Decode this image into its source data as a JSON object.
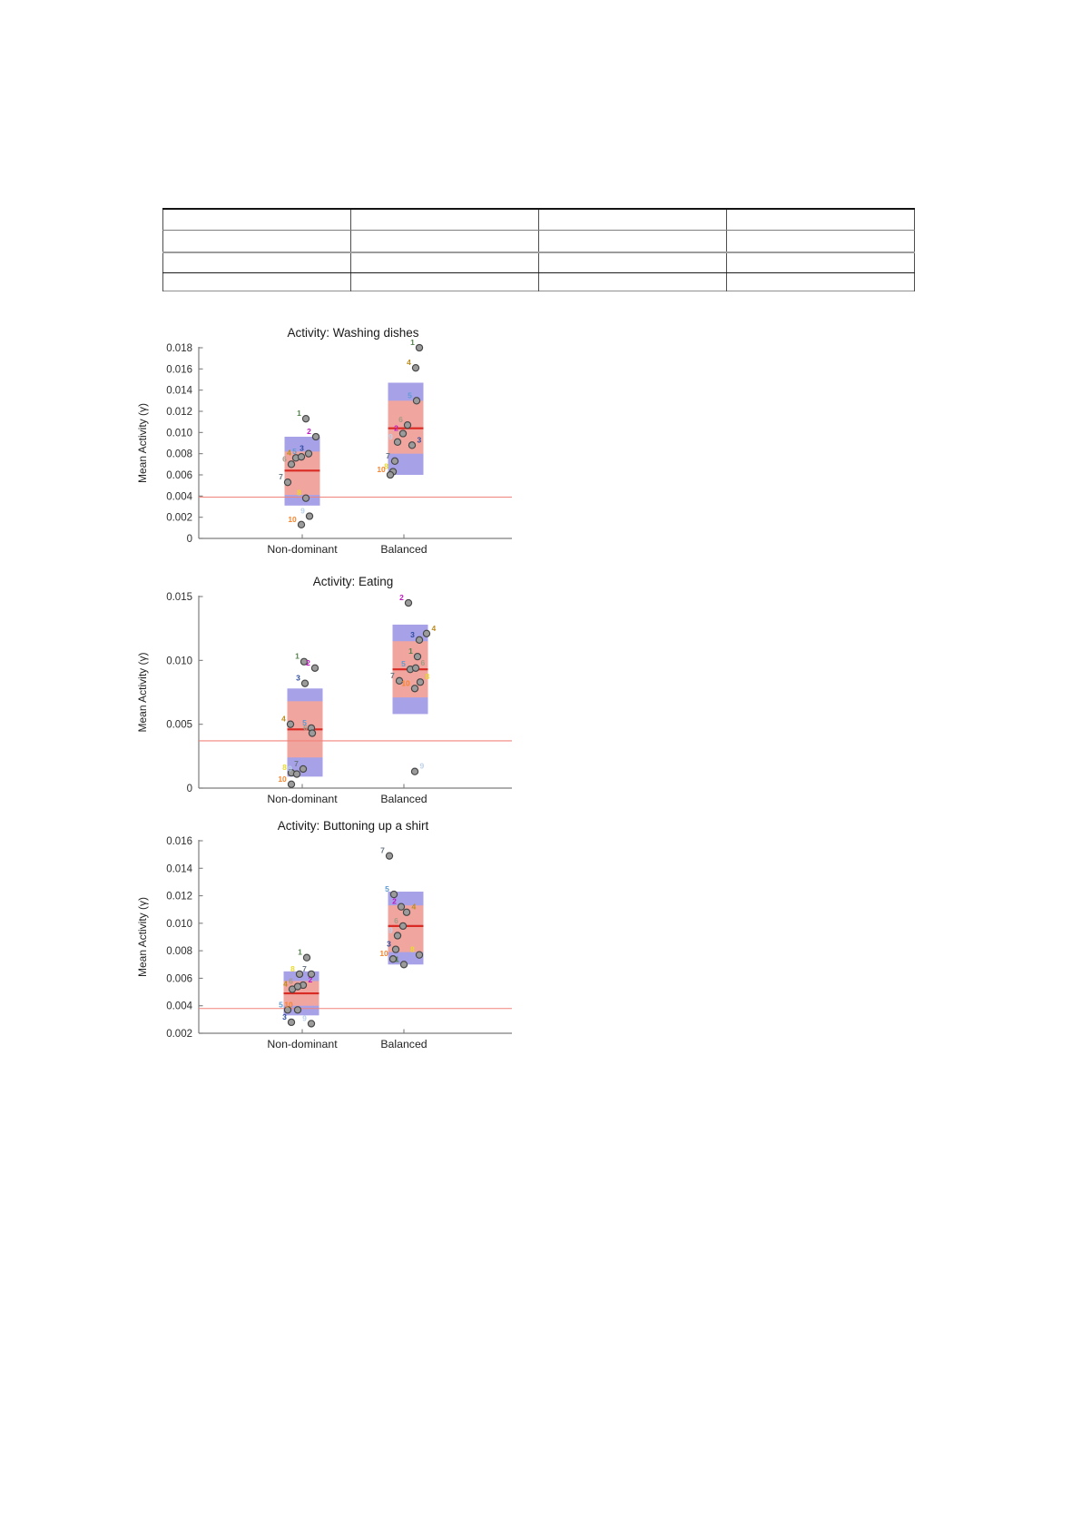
{
  "table": {
    "rows": 4,
    "cols": 4,
    "cells": [
      [
        "",
        "",
        "",
        ""
      ],
      [
        "",
        "",
        "",
        ""
      ],
      [
        "",
        "",
        "",
        ""
      ],
      [
        "",
        "",
        "",
        ""
      ]
    ]
  },
  "subject_colors": {
    "1": "#53824a",
    "2": "#c116c1",
    "3": "#2d4a9e",
    "4": "#bd8d22",
    "5": "#5f9bd3",
    "6": "#a39a86",
    "7": "#697683",
    "8": "#e9dc2a",
    "9": "#bcd2ec",
    "10": "#f5852f"
  },
  "colors": {
    "outer_box": "#a7a1e8",
    "inner_box": "#f0a59f",
    "median_line": "#d92b23",
    "reference_line": "#f0837b",
    "axis": "#7d7d7d",
    "marker_fill": "#9b9b9b",
    "marker_stroke": "#454545"
  },
  "chart_data": [
    {
      "type": "scatter",
      "title": "Activity:  Washing dishes",
      "ylabel": "Mean Activity (γ)",
      "categories": [
        "Non-dominant",
        "Balanced"
      ],
      "ylim": [
        0,
        0.018
      ],
      "yticks": [
        0,
        0.002,
        0.004,
        0.006,
        0.008,
        0.01,
        0.012,
        0.014,
        0.016,
        0.018
      ],
      "reference_line": 0.0039,
      "groups": [
        {
          "category": "Non-dominant",
          "box_dx": 0,
          "outer_range": [
            0.0031,
            0.0096
          ],
          "inner_range": [
            0.0041,
            0.0082
          ],
          "median": 0.0064,
          "points": [
            {
              "s": "1",
              "v": 0.0113,
              "dx": 4,
              "side": "left"
            },
            {
              "s": "2",
              "v": 0.0096,
              "dx": 15,
              "side": "left"
            },
            {
              "s": "3",
              "v": 0.008,
              "dx": 7,
              "side": "left"
            },
            {
              "s": "4",
              "v": 0.0076,
              "dx": -7,
              "side": "left"
            },
            {
              "s": "5",
              "v": 0.0077,
              "dx": -1,
              "side": "left"
            },
            {
              "s": "6",
              "v": 0.007,
              "dx": -12,
              "side": "left"
            },
            {
              "s": "7",
              "v": 0.0053,
              "dx": -16,
              "side": "left"
            },
            {
              "s": "8",
              "v": 0.0038,
              "dx": 4,
              "side": "left"
            },
            {
              "s": "9",
              "v": 0.0021,
              "dx": 8,
              "side": "left"
            },
            {
              "s": "10",
              "v": 0.0013,
              "dx": -1,
              "side": "left"
            }
          ]
        },
        {
          "category": "Balanced",
          "box_dx": 2,
          "outer_range": [
            0.006,
            0.0147
          ],
          "inner_range": [
            0.008,
            0.013
          ],
          "median": 0.0104,
          "points": [
            {
              "s": "1",
              "v": 0.018,
              "dx": 17,
              "side": "left"
            },
            {
              "s": "2",
              "v": 0.0099,
              "dx": -1,
              "side": "left"
            },
            {
              "s": "3",
              "v": 0.0088,
              "dx": 9,
              "side": "right"
            },
            {
              "s": "4",
              "v": 0.0161,
              "dx": 13,
              "side": "left"
            },
            {
              "s": "5",
              "v": 0.013,
              "dx": 14,
              "side": "left"
            },
            {
              "s": "6",
              "v": 0.0107,
              "dx": 4,
              "side": "left"
            },
            {
              "s": "7",
              "v": 0.0073,
              "dx": -10,
              "side": "left"
            },
            {
              "s": "8",
              "v": 0.0063,
              "dx": -12,
              "side": "left"
            },
            {
              "s": "9",
              "v": 0.0091,
              "dx": -7,
              "side": "left"
            },
            {
              "s": "10",
              "v": 0.006,
              "dx": -15,
              "side": "left"
            }
          ]
        }
      ]
    },
    {
      "type": "scatter",
      "title": "Activity: Eating",
      "ylabel": "Mean Activity (γ)",
      "categories": [
        "Non-dominant",
        "Balanced"
      ],
      "ylim": [
        0,
        0.015
      ],
      "yticks": [
        0,
        0.005,
        0.01,
        0.015
      ],
      "reference_line": 0.0037,
      "groups": [
        {
          "category": "Non-dominant",
          "box_dx": 3,
          "outer_range": [
            0.0009,
            0.0078
          ],
          "inner_range": [
            0.0024,
            0.0068
          ],
          "median": 0.0046,
          "points": [
            {
              "s": "1",
              "v": 0.0099,
              "dx": 2,
              "side": "left"
            },
            {
              "s": "2",
              "v": 0.0094,
              "dx": 14,
              "side": "left"
            },
            {
              "s": "3",
              "v": 0.0082,
              "dx": 3,
              "side": "left"
            },
            {
              "s": "4",
              "v": 0.005,
              "dx": -13,
              "side": "left"
            },
            {
              "s": "5",
              "v": 0.0047,
              "dx": 10,
              "side": "left"
            },
            {
              "s": "6",
              "v": 0.0043,
              "dx": 11,
              "side": "left"
            },
            {
              "s": "7",
              "v": 0.0015,
              "dx": 1,
              "side": "left"
            },
            {
              "s": "8",
              "v": 0.0012,
              "dx": -12,
              "side": "left"
            },
            {
              "s": "9",
              "v": 0.0011,
              "dx": -6,
              "side": "left"
            },
            {
              "s": "10",
              "v": 0.0003,
              "dx": -12,
              "side": "left"
            }
          ]
        },
        {
          "category": "Balanced",
          "box_dx": 7,
          "outer_range": [
            0.0058,
            0.0128
          ],
          "inner_range": [
            0.0071,
            0.0115
          ],
          "median": 0.0093,
          "points": [
            {
              "s": "1",
              "v": 0.0103,
              "dx": 15,
              "side": "left"
            },
            {
              "s": "2",
              "v": 0.0145,
              "dx": 5,
              "side": "left"
            },
            {
              "s": "3",
              "v": 0.0116,
              "dx": 17,
              "side": "left"
            },
            {
              "s": "4",
              "v": 0.0121,
              "dx": 25,
              "side": "right"
            },
            {
              "s": "5",
              "v": 0.0093,
              "dx": 7,
              "side": "left"
            },
            {
              "s": "6",
              "v": 0.0094,
              "dx": 13,
              "side": "right"
            },
            {
              "s": "7",
              "v": 0.0084,
              "dx": -5,
              "side": "left"
            },
            {
              "s": "8",
              "v": 0.0083,
              "dx": 18,
              "side": "right"
            },
            {
              "s": "9",
              "v": 0.0013,
              "dx": 12,
              "side": "right"
            },
            {
              "s": "10",
              "v": 0.0078,
              "dx": 12,
              "side": "left"
            }
          ]
        }
      ]
    },
    {
      "type": "scatter",
      "title": "Activity: Buttoning up a shirt",
      "ylabel": "Mean Activity (γ)",
      "categories": [
        "Non-dominant",
        "Balanced"
      ],
      "ylim": [
        0.002,
        0.016
      ],
      "yticks": [
        0.002,
        0.004,
        0.006,
        0.008,
        0.01,
        0.012,
        0.014,
        0.016
      ],
      "reference_line": 0.0038,
      "groups": [
        {
          "category": "Non-dominant",
          "box_dx": -1,
          "outer_range": [
            0.0033,
            0.0065
          ],
          "inner_range": [
            0.004,
            0.0058
          ],
          "median": 0.0049,
          "points": [
            {
              "s": "1",
              "v": 0.0075,
              "dx": 5,
              "side": "left"
            },
            {
              "s": "2",
              "v": 0.0055,
              "dx": 1,
              "side": "right"
            },
            {
              "s": "3",
              "v": 0.0028,
              "dx": -12,
              "side": "left"
            },
            {
              "s": "4",
              "v": 0.0052,
              "dx": -11,
              "side": "left"
            },
            {
              "s": "5",
              "v": 0.0037,
              "dx": -16,
              "side": "left"
            },
            {
              "s": "6",
              "v": 0.0054,
              "dx": -5,
              "side": "left"
            },
            {
              "s": "7",
              "v": 0.0063,
              "dx": 10,
              "side": "left"
            },
            {
              "s": "8",
              "v": 0.0063,
              "dx": -3,
              "side": "left"
            },
            {
              "s": "9",
              "v": 0.0027,
              "dx": 10,
              "side": "left"
            },
            {
              "s": "10",
              "v": 0.0037,
              "dx": -5,
              "side": "left"
            }
          ]
        },
        {
          "category": "Balanced",
          "box_dx": 2,
          "outer_range": [
            0.007,
            0.0123
          ],
          "inner_range": [
            0.0079,
            0.0113
          ],
          "median": 0.0098,
          "points": [
            {
              "s": "1",
              "v": 0.007,
              "dx": 0,
              "side": "left"
            },
            {
              "s": "2",
              "v": 0.0112,
              "dx": -3,
              "side": "left"
            },
            {
              "s": "3",
              "v": 0.0081,
              "dx": -9,
              "side": "left"
            },
            {
              "s": "4",
              "v": 0.0108,
              "dx": 3,
              "side": "right"
            },
            {
              "s": "5",
              "v": 0.0121,
              "dx": -11,
              "side": "left"
            },
            {
              "s": "6",
              "v": 0.0098,
              "dx": -1,
              "side": "left"
            },
            {
              "s": "7",
              "v": 0.0149,
              "dx": -16,
              "side": "left"
            },
            {
              "s": "8",
              "v": 0.0077,
              "dx": 17,
              "side": "left"
            },
            {
              "s": "9",
              "v": 0.0091,
              "dx": -7,
              "side": "left"
            },
            {
              "s": "10",
              "v": 0.0074,
              "dx": -12,
              "side": "left"
            }
          ]
        }
      ]
    }
  ]
}
